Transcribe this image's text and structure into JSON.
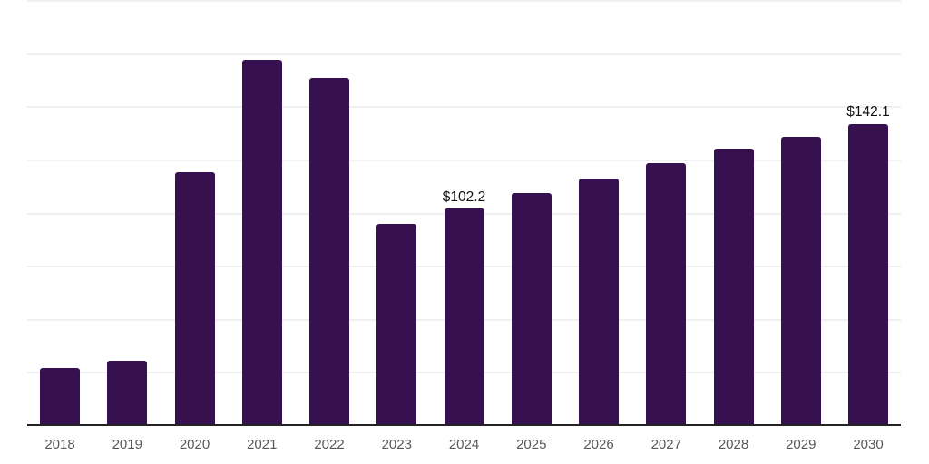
{
  "chart_data": {
    "type": "bar",
    "title": "",
    "xlabel": "",
    "ylabel": "",
    "categories": [
      "2018",
      "2019",
      "2020",
      "2021",
      "2022",
      "2023",
      "2024",
      "2025",
      "2026",
      "2027",
      "2028",
      "2029",
      "2030"
    ],
    "values": [
      27.3,
      30.9,
      119.5,
      172.1,
      163.9,
      95.3,
      102.2,
      109.8,
      116.6,
      123.7,
      130.4,
      136.2,
      142.1
    ],
    "data_labels": {
      "2024": "$102.2",
      "2030": "$142.1"
    },
    "ylim": [
      0,
      200
    ],
    "gridline_step": 25,
    "grid": "horizontal",
    "y_axis_labels_visible": false,
    "legend": "none",
    "bar_color": "#37114F",
    "axis_line_color": "#222222",
    "gridline_color": "#F0F0F2",
    "tick_label_color": "#58585A",
    "data_label_color": "#111111",
    "background_color": "#FFFFFF"
  }
}
